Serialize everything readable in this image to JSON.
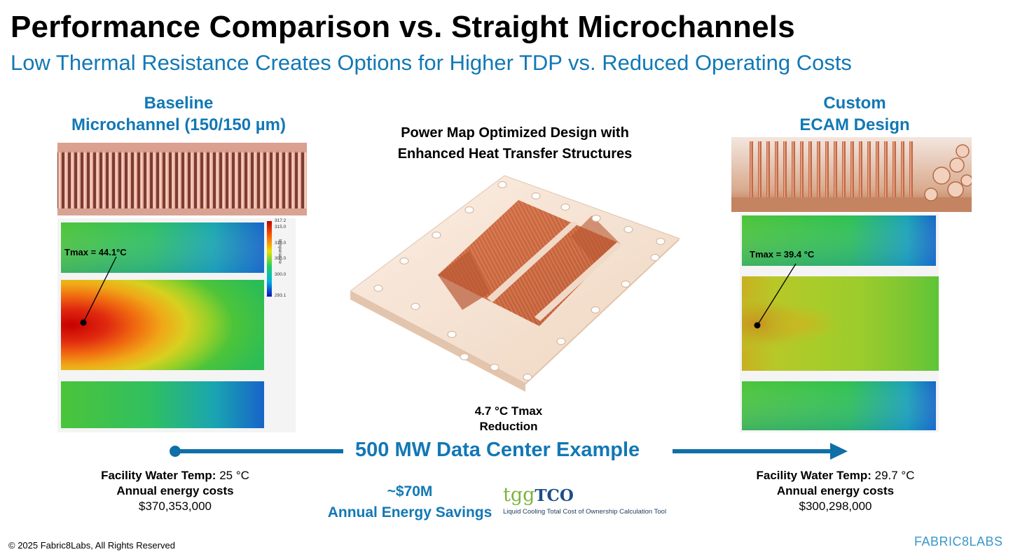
{
  "header": {
    "title": "Performance Comparison vs. Straight Microchannels",
    "subtitle": "Low Thermal Resistance Creates Options for Higher TDP vs. Reduced Operating Costs"
  },
  "left": {
    "heading_line1": "Baseline",
    "heading_line2": "Microchannel (150/150 µm)",
    "tmax_label": "Tmax = 44.1°C",
    "colorbar": {
      "ticks": [
        "317.2",
        "315.0",
        "310.0",
        "305.0",
        "300.0",
        "293.1"
      ],
      "axis_label": "temperature"
    },
    "facility_label": "Facility Water Temp:",
    "facility_value": "25 °C",
    "energy_label": "Annual energy costs",
    "energy_value": "$370,353,000"
  },
  "center": {
    "heading_line1": "Power Map Optimized Design with",
    "heading_line2": "Enhanced Heat Transfer Structures",
    "reduction_line1": "4.7 °C Tmax",
    "reduction_line2": "Reduction"
  },
  "right": {
    "heading_line1": "Custom",
    "heading_line2": "ECAM Design",
    "tmax_label": "Tmax = 39.4 °C",
    "facility_label": "Facility Water Temp:",
    "facility_value": "29.7 °C",
    "energy_label": "Annual energy costs",
    "energy_value": "$300,298,000"
  },
  "banner": {
    "text": "500 MW Data Center Example"
  },
  "savings": {
    "amount": "~$70M",
    "label": "Annual Energy Savings"
  },
  "tgg": {
    "logo_tgg": "tgg",
    "logo_tco": "TCO",
    "caption": "Liquid Cooling Total Cost of Ownership Calculation Tool"
  },
  "footer": {
    "copyright": "© 2025 Fabric8Labs, All Rights Reserved",
    "brand": "FABRIC8LABS"
  },
  "colors": {
    "accent_blue": "#1278b5",
    "arrow_blue": "#0f6fa8",
    "copper": "#c96a45"
  }
}
